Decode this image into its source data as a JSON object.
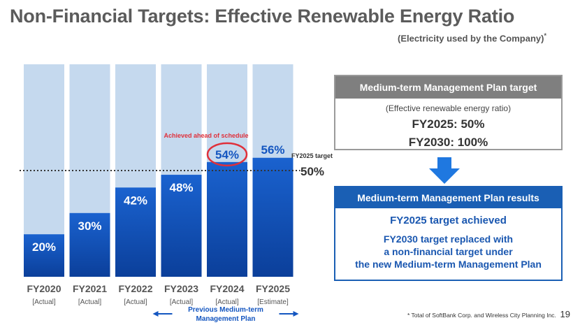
{
  "title": "Non-Financial Targets: Effective Renewable Energy Ratio",
  "subtitle": "(Electricity used by the Company)",
  "subtitle_mark": "*",
  "chart_data": {
    "type": "bar",
    "categories": [
      "FY2020",
      "FY2021",
      "FY2022",
      "FY2023",
      "FY2024",
      "FY2025"
    ],
    "category_notes": [
      "[Actual]",
      "[Actual]",
      "[Actual]",
      "[Actual]",
      "[Actual]",
      "[Estimate]"
    ],
    "values": [
      20,
      30,
      42,
      48,
      54,
      56
    ],
    "value_labels": [
      "20%",
      "30%",
      "42%",
      "48%",
      "54%",
      "56%"
    ],
    "ylim": [
      0,
      100
    ],
    "grid": false,
    "target_line": {
      "value": 50,
      "label": "FY2025 target",
      "value_label": "50%"
    },
    "highlight": {
      "category": "FY2024",
      "annotation": "Achieved ahead of schedule"
    },
    "period_label": "Previous Medium-term Management Plan",
    "colors": {
      "bar": "#1456c0",
      "bar_dark": "#0b3f9a",
      "track": "#c5d9ee",
      "highlight": "#e0303a",
      "label_blue": "#1456c0"
    }
  },
  "target_box": {
    "header": "Medium-term Management Plan target",
    "subheader": "(Effective renewable energy ratio)",
    "line1": "FY2025: 50%",
    "line2": "FY2030: 100%"
  },
  "results_box": {
    "header": "Medium-term Management Plan results",
    "line1": "FY2025 target achieved",
    "line2a": "FY2030 target replaced with",
    "line2b": "a non-financial target under",
    "line2c": "the new Medium-term Management Plan"
  },
  "footnote": "* Total of SoftBank Corp. and Wireless City Planning Inc.",
  "page_number": "19"
}
